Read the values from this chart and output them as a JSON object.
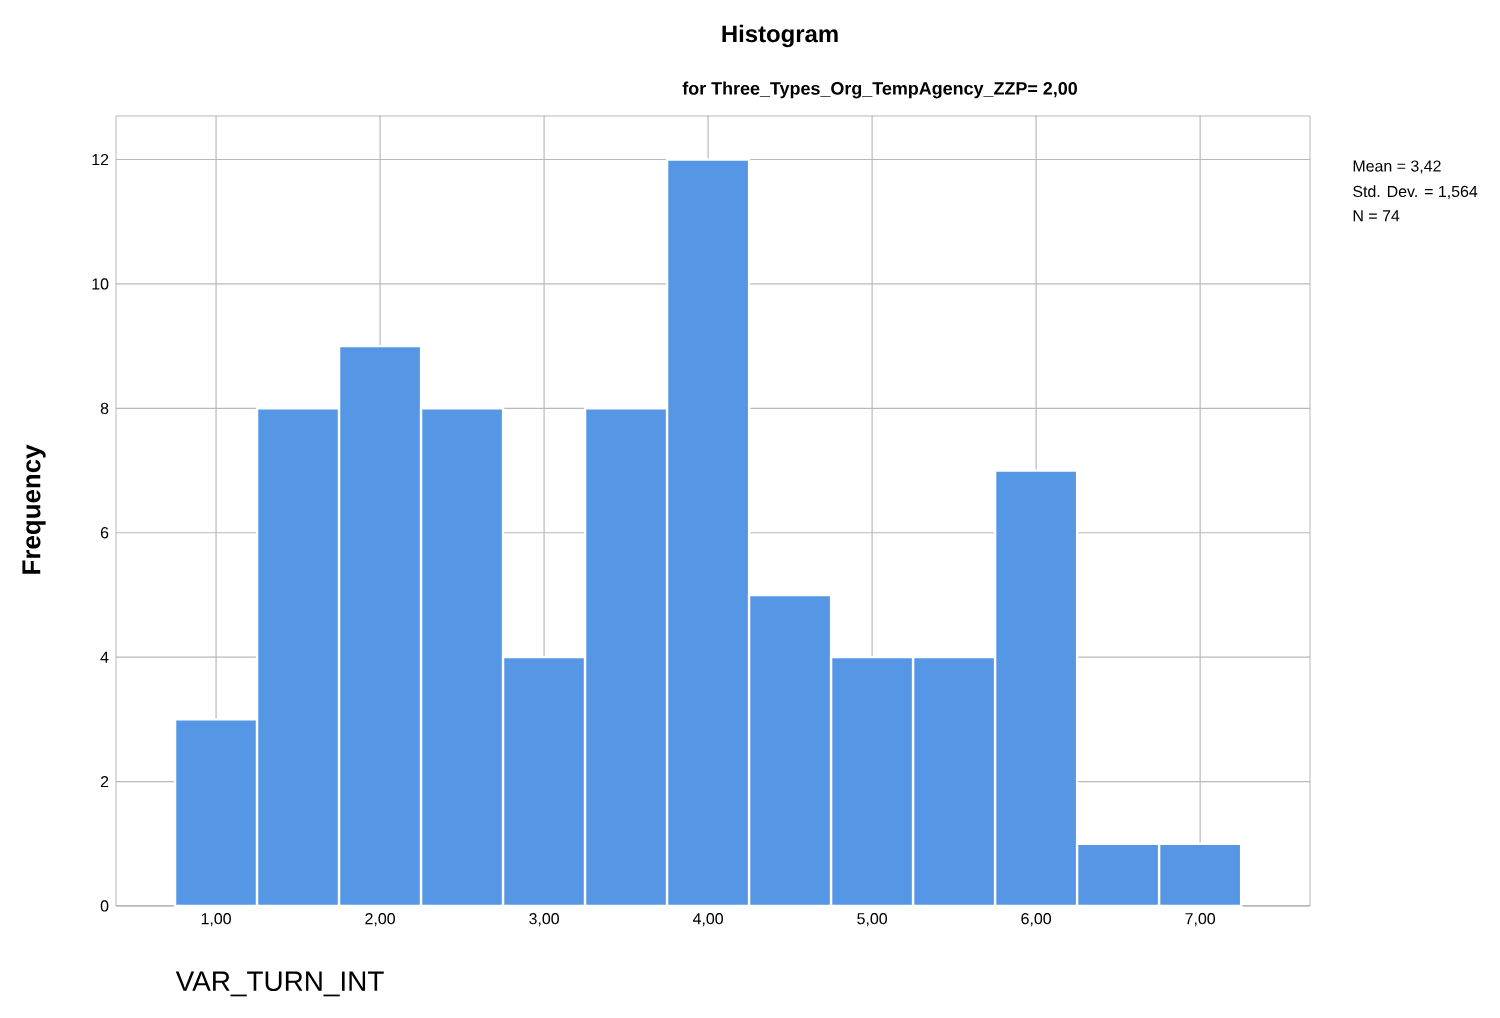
{
  "chart_data": {
    "type": "histogram",
    "title": "Histogram",
    "subtitle": "for Three_Types_Org_TempAgency_ZZP= 2,00",
    "xlabel": "VAR_TURN_INT",
    "ylabel": "Frequency",
    "bins": [
      0.75,
      1.25,
      1.75,
      2.25,
      2.75,
      3.25,
      3.75,
      4.25,
      4.75,
      5.25,
      5.75,
      6.25,
      6.75,
      7.25
    ],
    "values": [
      3,
      8,
      9,
      8,
      4,
      8,
      12,
      5,
      4,
      4,
      7,
      1,
      1
    ],
    "color": "#5597e4",
    "xlim": [
      0.39,
      7.67
    ],
    "ylim": [
      0,
      12.7
    ],
    "xticks": [
      {
        "value": 1,
        "label": "1,00"
      },
      {
        "value": 2,
        "label": "2,00"
      },
      {
        "value": 3,
        "label": "3,00"
      },
      {
        "value": 4,
        "label": "4,00"
      },
      {
        "value": 5,
        "label": "5,00"
      },
      {
        "value": 6,
        "label": "6,00"
      },
      {
        "value": 7,
        "label": "7,00"
      }
    ],
    "yticks": [
      0,
      2,
      4,
      6,
      8,
      10,
      12
    ],
    "grid": true,
    "annotations": [
      "Mean = 3,42",
      "Std. Dev. = 1,564",
      "N = 74"
    ]
  }
}
